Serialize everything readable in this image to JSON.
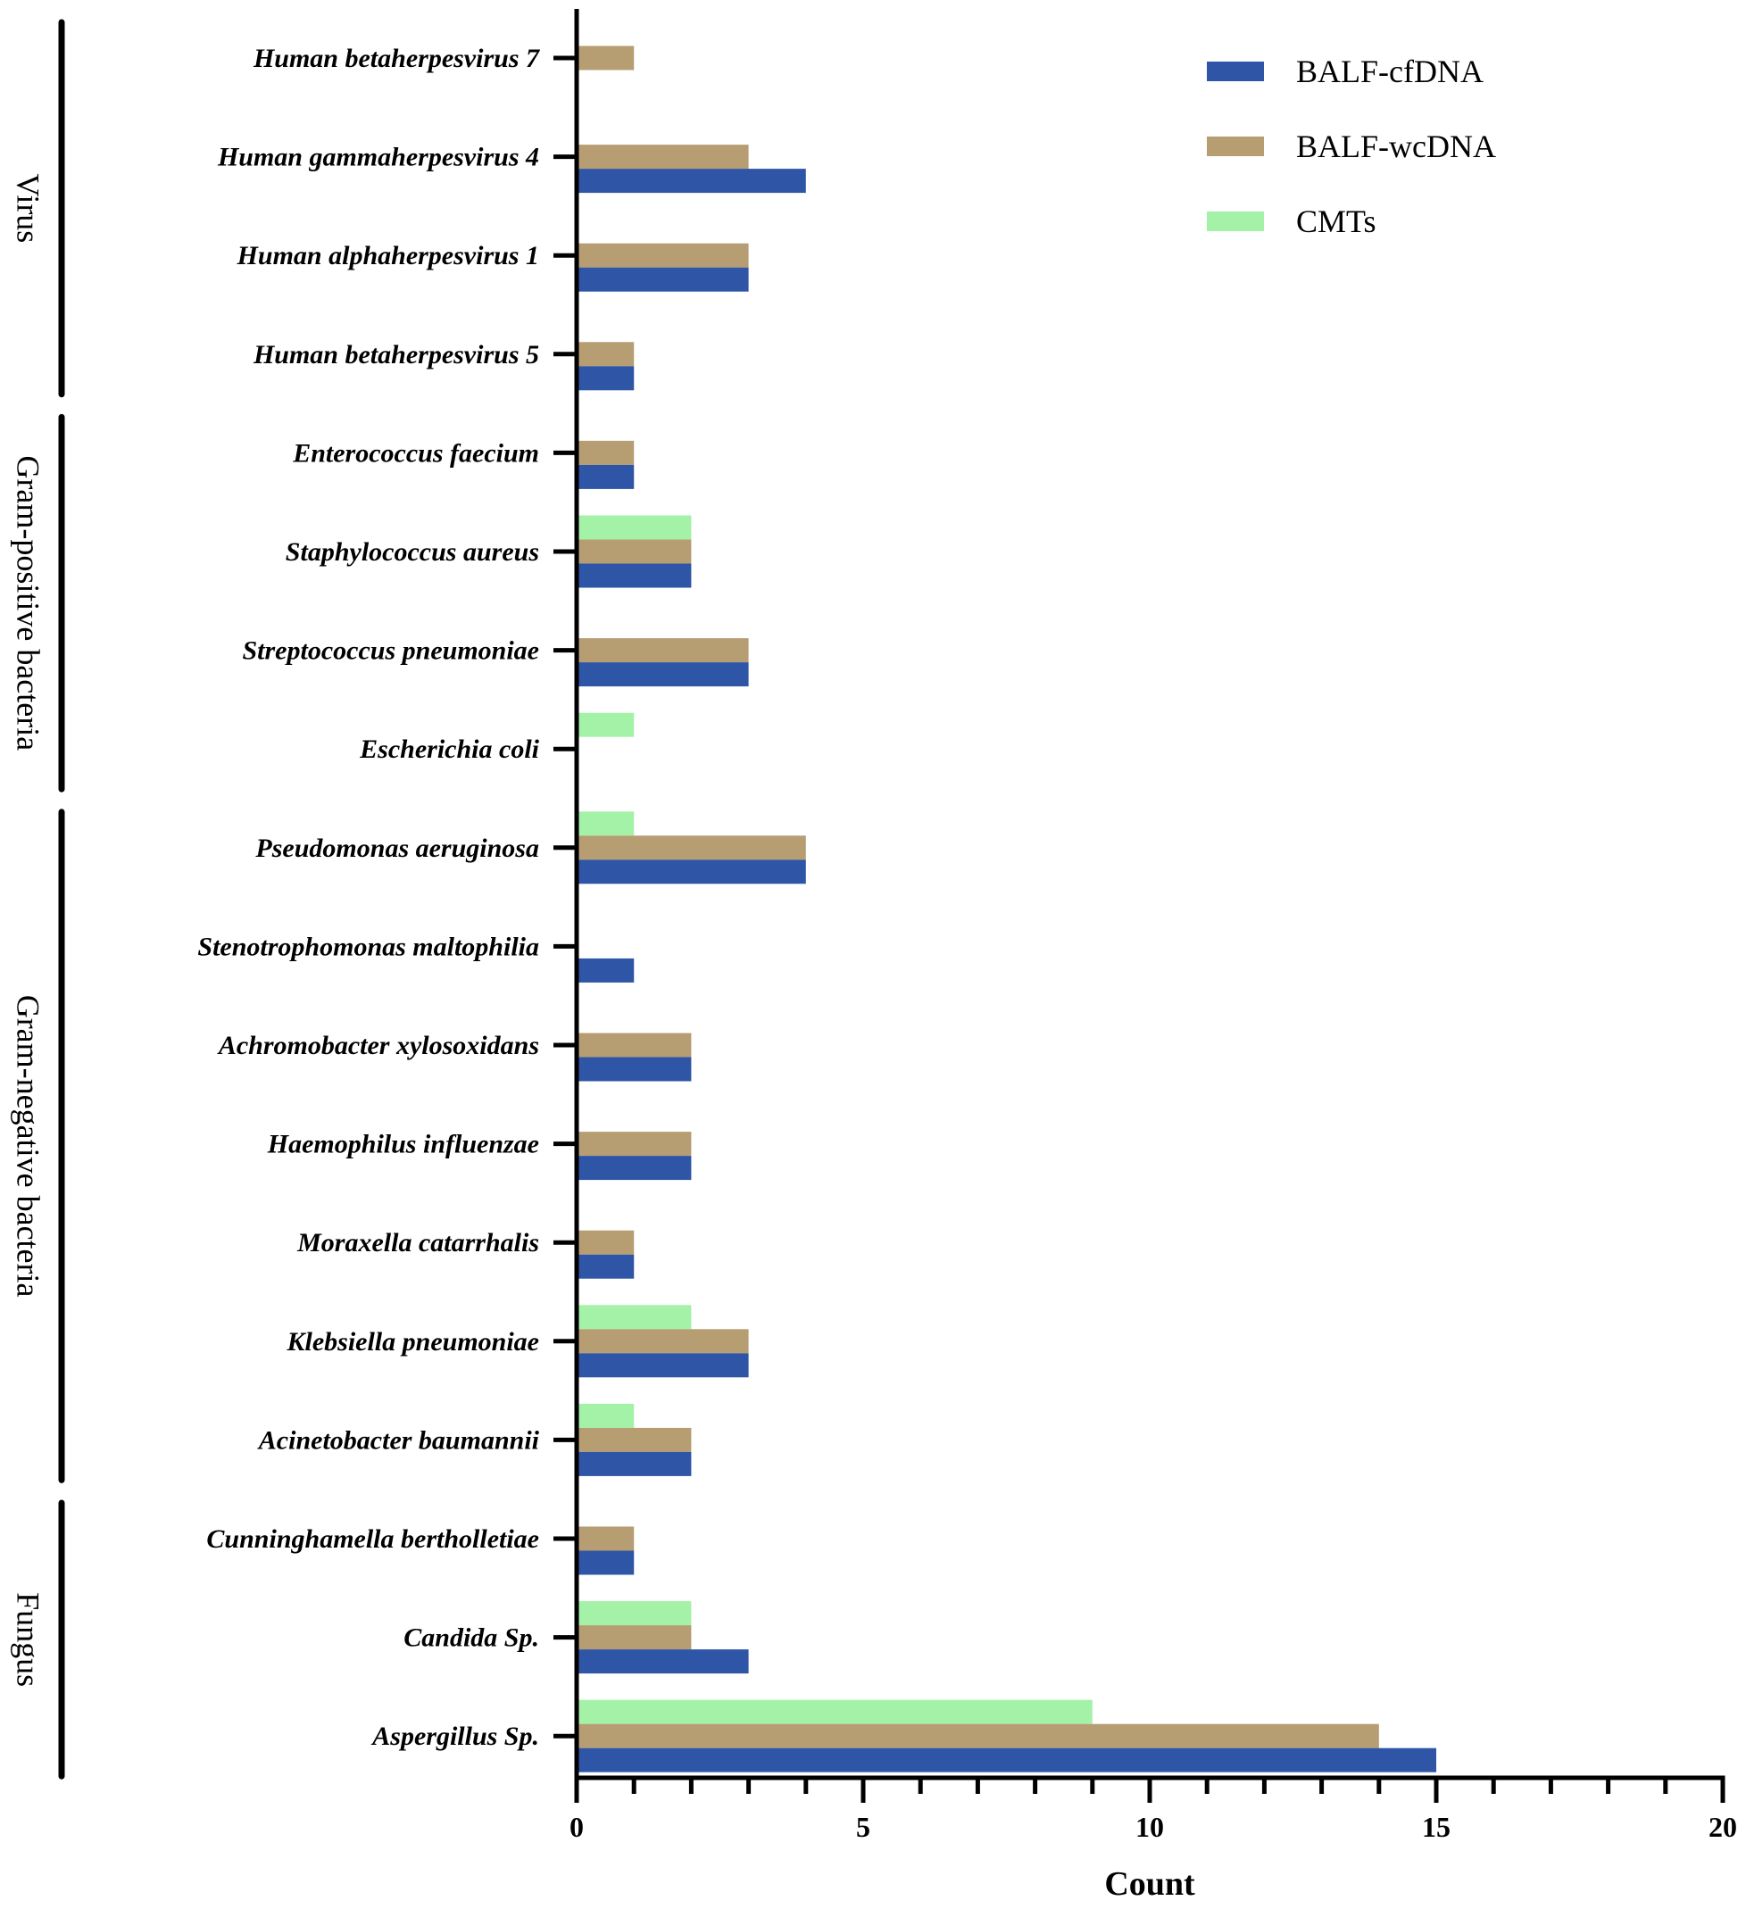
{
  "chart_data": {
    "type": "bar",
    "orientation": "horizontal",
    "title": "",
    "xlabel": "Count",
    "ylabel": "",
    "xlim": [
      0,
      20
    ],
    "x_ticks": [
      0,
      5,
      10,
      15,
      20
    ],
    "legend_position": "top-right",
    "categories": [
      "Human betaherpesvirus 7",
      "Human gammaherpesvirus 4",
      "Human alphaherpesvirus 1",
      "Human betaherpesvirus 5",
      "Enterococcus faecium",
      "Staphylococcus aureus",
      "Streptococcus pneumoniae",
      "Escherichia coli",
      "Pseudomonas aeruginosa",
      "Stenotrophomonas maltophilia",
      "Achromobacter xylosoxidans",
      "Haemophilus influenzae",
      "Moraxella catarrhalis",
      "Klebsiella pneumoniae",
      "Acinetobacter baumannii",
      "Cunninghamella bertholletiae",
      "Candida Sp.",
      "Aspergillus Sp."
    ],
    "series": [
      {
        "name": "BALF-cfDNA",
        "color": "#2f56a6",
        "values": [
          0,
          4,
          3,
          1,
          1,
          2,
          3,
          0,
          4,
          1,
          2,
          2,
          1,
          3,
          2,
          1,
          3,
          15
        ]
      },
      {
        "name": "BALF-wcDNA",
        "color": "#b79d72",
        "values": [
          1,
          3,
          3,
          1,
          1,
          2,
          3,
          0,
          4,
          0,
          2,
          2,
          1,
          3,
          2,
          1,
          2,
          14
        ]
      },
      {
        "name": "CMTs",
        "color": "#a4f2a8",
        "values": [
          0,
          0,
          0,
          0,
          0,
          2,
          0,
          1,
          1,
          0,
          0,
          0,
          0,
          2,
          1,
          0,
          2,
          9
        ]
      }
    ],
    "groups": [
      {
        "name": "Virus",
        "first": 0,
        "last": 3
      },
      {
        "name": "Gram-positive bacteria",
        "first": 4,
        "last": 7
      },
      {
        "name": "Gram-negative bacteria",
        "first": 8,
        "last": 14
      },
      {
        "name": "Fungus",
        "first": 15,
        "last": 17
      }
    ]
  }
}
